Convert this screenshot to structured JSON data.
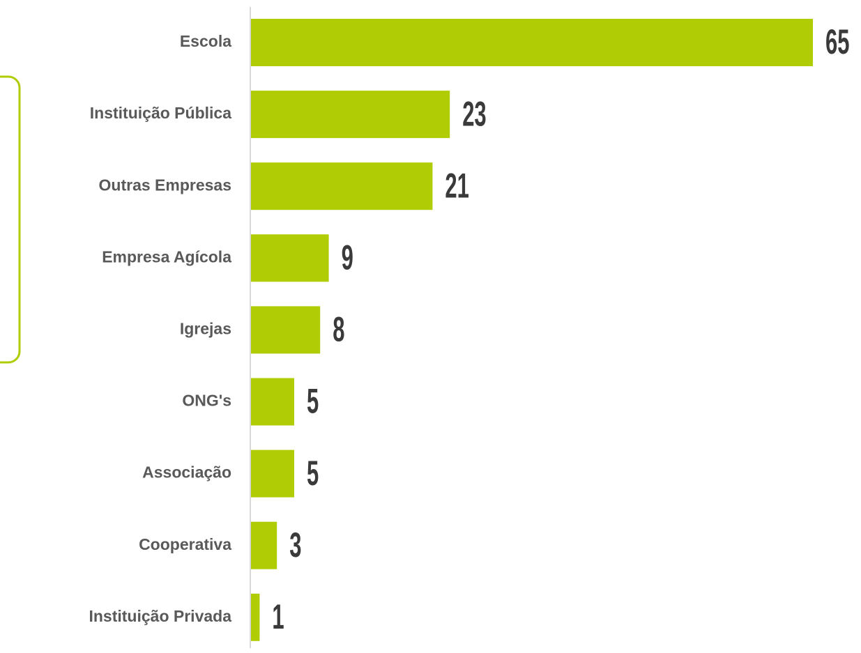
{
  "chart_data": {
    "type": "bar",
    "orientation": "horizontal",
    "categories": [
      "Escola",
      "Instituição Pública",
      "Outras Empresas",
      "Empresa Agícola",
      "Igrejas",
      "ONG's",
      "Associação",
      "Cooperativa",
      "Instituição Privada"
    ],
    "values": [
      65,
      23,
      21,
      9,
      8,
      5,
      5,
      3,
      1
    ],
    "color": "#b0cc04",
    "xlim": [
      0,
      65
    ]
  }
}
